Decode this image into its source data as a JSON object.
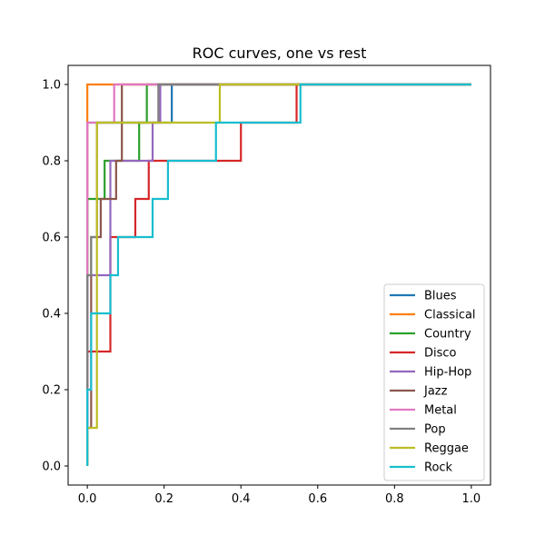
{
  "chart_data": {
    "type": "line",
    "title": "ROC curves, one vs rest",
    "xlabel": "",
    "ylabel": "",
    "xlim": [
      -0.05,
      1.05
    ],
    "ylim": [
      -0.05,
      1.05
    ],
    "x_ticks": [
      "0.0",
      "0.2",
      "0.4",
      "0.6",
      "0.8",
      "1.0"
    ],
    "y_ticks": [
      "0.0",
      "0.2",
      "0.4",
      "0.6",
      "0.8",
      "1.0"
    ],
    "grid": false,
    "legend_position": "lower-right",
    "series": [
      {
        "name": "Blues",
        "color": "#1f77b4",
        "x": [
          0,
          0,
          0.06,
          0.06,
          0.22,
          0.22,
          1.0
        ],
        "y": [
          0,
          0.9,
          0.9,
          0.9,
          0.9,
          1.0,
          1.0
        ]
      },
      {
        "name": "Classical",
        "color": "#ff7f0e",
        "x": [
          0,
          0,
          1.0
        ],
        "y": [
          0,
          1.0,
          1.0
        ]
      },
      {
        "name": "Country",
        "color": "#2ca02c",
        "x": [
          0,
          0,
          0.045,
          0.045,
          0.135,
          0.135,
          0.155,
          0.155,
          1.0
        ],
        "y": [
          0,
          0.7,
          0.7,
          0.8,
          0.8,
          0.9,
          0.9,
          1.0,
          1.0
        ]
      },
      {
        "name": "Disco",
        "color": "#d62728",
        "x": [
          0,
          0,
          0.06,
          0.06,
          0.125,
          0.125,
          0.16,
          0.16,
          0.4,
          0.4,
          0.545,
          0.545,
          1.0
        ],
        "y": [
          0,
          0.3,
          0.3,
          0.6,
          0.6,
          0.7,
          0.7,
          0.8,
          0.8,
          0.9,
          0.9,
          1.0,
          1.0
        ]
      },
      {
        "name": "Hip-Hop",
        "color": "#9467bd",
        "x": [
          0,
          0,
          0.06,
          0.06,
          0.17,
          0.17,
          0.19,
          0.19,
          1.0
        ],
        "y": [
          0,
          0.5,
          0.5,
          0.8,
          0.8,
          0.9,
          0.9,
          1.0,
          1.0
        ]
      },
      {
        "name": "Jazz",
        "color": "#8c564b",
        "x": [
          0,
          0,
          0.01,
          0.01,
          0.035,
          0.035,
          0.075,
          0.075,
          0.09,
          0.09,
          1.0
        ],
        "y": [
          0,
          0.1,
          0.1,
          0.6,
          0.6,
          0.7,
          0.7,
          0.8,
          0.8,
          1.0,
          1.0
        ]
      },
      {
        "name": "Metal",
        "color": "#e377c2",
        "x": [
          0,
          0,
          0.07,
          0.07,
          1.0
        ],
        "y": [
          0,
          0.9,
          0.9,
          1.0,
          1.0
        ]
      },
      {
        "name": "Pop",
        "color": "#7f7f7f",
        "x": [
          0,
          0,
          0.01,
          0.01,
          0.025,
          0.025,
          0.185,
          0.185,
          1.0
        ],
        "y": [
          0,
          0.5,
          0.5,
          0.6,
          0.6,
          0.9,
          0.9,
          1.0,
          1.0
        ]
      },
      {
        "name": "Reggae",
        "color": "#bcbd22",
        "x": [
          0,
          0,
          0.025,
          0.025,
          0.345,
          0.345,
          1.0
        ],
        "y": [
          0,
          0.1,
          0.1,
          0.9,
          0.9,
          1.0,
          1.0
        ]
      },
      {
        "name": "Rock",
        "color": "#17becf",
        "x": [
          0,
          0,
          0.01,
          0.01,
          0.06,
          0.06,
          0.08,
          0.08,
          0.17,
          0.17,
          0.21,
          0.21,
          0.335,
          0.335,
          0.555,
          0.555,
          1.0
        ],
        "y": [
          0,
          0.2,
          0.2,
          0.4,
          0.4,
          0.5,
          0.5,
          0.6,
          0.6,
          0.7,
          0.7,
          0.8,
          0.8,
          0.9,
          0.9,
          1.0,
          1.0
        ]
      }
    ]
  }
}
